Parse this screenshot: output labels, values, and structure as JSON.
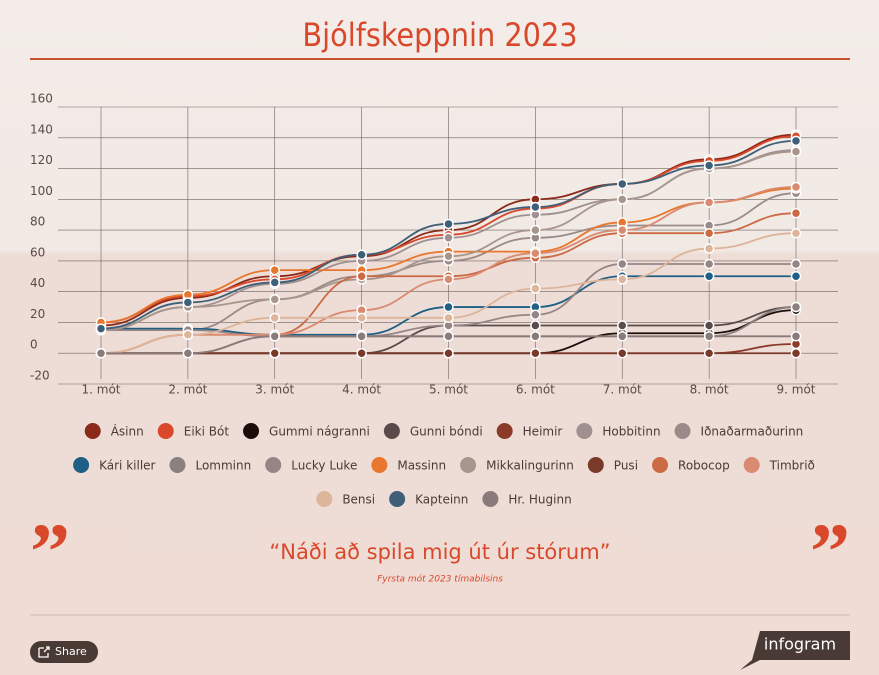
{
  "chart_data": {
    "type": "line",
    "title": "Bjólfskeppnin 2023",
    "categories": [
      "1. mót",
      "2. mót",
      "3. mót",
      "4. mót",
      "5. mót",
      "6. mót",
      "7. mót",
      "8. mót",
      "9. mót"
    ],
    "ylim": [
      -20,
      160
    ],
    "yticks": [
      -20,
      0,
      20,
      40,
      60,
      80,
      100,
      120,
      140,
      160
    ],
    "grid": true,
    "series": [
      {
        "name": "Ásinn",
        "color": "#8b2a1a",
        "values": [
          18,
          36,
          50,
          63,
          80,
          100,
          110,
          126,
          142
        ]
      },
      {
        "name": "Eiki Bót",
        "color": "#d9482b",
        "values": [
          20,
          37,
          48,
          64,
          77,
          94,
          110,
          125,
          141
        ]
      },
      {
        "name": "Gummi nágranni",
        "color": "#1a0d0a",
        "values": [
          0,
          0,
          0,
          0,
          0,
          0,
          13,
          13,
          28
        ]
      },
      {
        "name": "Gunni bóndi",
        "color": "#5a4a4a",
        "values": [
          0,
          0,
          0,
          0,
          18,
          18,
          18,
          18,
          30
        ]
      },
      {
        "name": "Heimir",
        "color": "#8b3a2a",
        "values": [
          0,
          0,
          0,
          0,
          0,
          0,
          0,
          0,
          6
        ]
      },
      {
        "name": "Hobbitinn",
        "color": "#a09090",
        "values": [
          15,
          30,
          45,
          60,
          75,
          90,
          100,
          120,
          132
        ]
      },
      {
        "name": "Iðnaðarmaðurinn",
        "color": "#9a8a8a",
        "values": [
          15,
          15,
          35,
          50,
          60,
          75,
          83,
          83,
          104
        ]
      },
      {
        "name": "Kári killer",
        "color": "#1f5f85",
        "values": [
          16,
          16,
          12,
          12,
          30,
          30,
          50,
          50,
          50
        ]
      },
      {
        "name": "Lomminn",
        "color": "#8a8080",
        "values": [
          0,
          0,
          11,
          11,
          11,
          11,
          11,
          11,
          30
        ]
      },
      {
        "name": "Lucky Luke",
        "color": "#958585",
        "values": [
          15,
          15,
          11,
          11,
          18,
          25,
          58,
          58,
          58
        ]
      },
      {
        "name": "Massinn",
        "color": "#e8762c",
        "values": [
          20,
          38,
          54,
          54,
          66,
          66,
          85,
          98,
          107
        ]
      },
      {
        "name": "Mikkalingurinn",
        "color": "#a8968c",
        "values": [
          15,
          30,
          35,
          48,
          63,
          80,
          100,
          120,
          131
        ]
      },
      {
        "name": "Pusi",
        "color": "#7a3a2a",
        "values": [
          0,
          0,
          0,
          0,
          0,
          0,
          0,
          0,
          0
        ]
      },
      {
        "name": "Robocop",
        "color": "#cc6a45",
        "values": [
          0,
          12,
          12,
          50,
          50,
          62,
          78,
          78,
          91
        ]
      },
      {
        "name": "Timbrið",
        "color": "#d98a70",
        "values": [
          0,
          12,
          12,
          28,
          48,
          65,
          80,
          98,
          108
        ]
      },
      {
        "name": "Bensi",
        "color": "#dcb59a",
        "values": [
          0,
          12,
          23,
          23,
          23,
          42,
          48,
          68,
          78
        ]
      },
      {
        "name": "Kapteinn",
        "color": "#3f5f78",
        "values": [
          16,
          33,
          46,
          64,
          84,
          95,
          110,
          122,
          138
        ]
      },
      {
        "name": "Hr. Huginn",
        "color": "#8a7a7a",
        "values": [
          0,
          0,
          11,
          11,
          11,
          11,
          11,
          11,
          11
        ]
      }
    ]
  },
  "page": {
    "quote": "“Náði að spila mig út úr stórum”",
    "quote_source": "Fyrsta mót 2023 tímabilsins",
    "share": "Share",
    "brand": "infogram"
  }
}
